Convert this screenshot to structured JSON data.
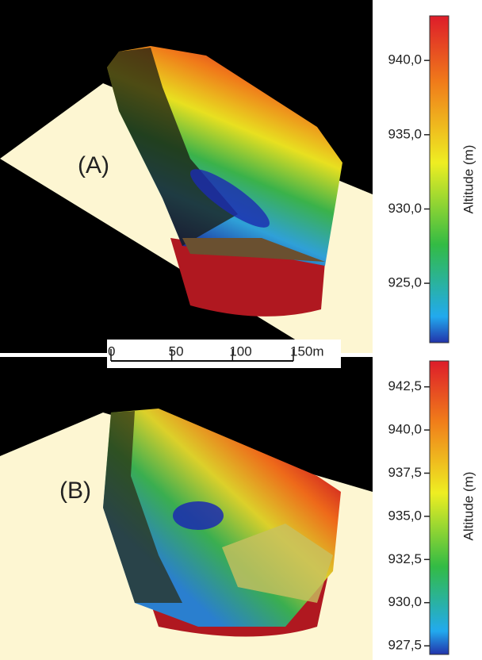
{
  "panels": [
    {
      "label": "(A)",
      "colorbar": {
        "label": "Altitude (m)",
        "ylim": [
          921,
          943
        ],
        "yticks": [
          {
            "value": 940,
            "label": "940,0"
          },
          {
            "value": 935,
            "label": "935,0"
          },
          {
            "value": 930,
            "label": "930,0"
          },
          {
            "value": 925,
            "label": "925,0"
          }
        ]
      }
    },
    {
      "label": "(B)",
      "colorbar": {
        "label": "Altitude (m)",
        "ylim": [
          927,
          944
        ],
        "yticks": [
          {
            "value": 942.5,
            "label": "942,5"
          },
          {
            "value": 940,
            "label": "940,0"
          },
          {
            "value": 937.5,
            "label": "937,5"
          },
          {
            "value": 935,
            "label": "935,0"
          },
          {
            "value": 932.5,
            "label": "932,5"
          },
          {
            "value": 930,
            "label": "930,0"
          },
          {
            "value": 927.5,
            "label": "927,5"
          }
        ]
      }
    }
  ],
  "scale_bar": {
    "xlim": [
      0,
      150
    ],
    "ticks": [
      0,
      50,
      100,
      {
        "value": 150,
        "label": "150m"
      }
    ]
  }
}
